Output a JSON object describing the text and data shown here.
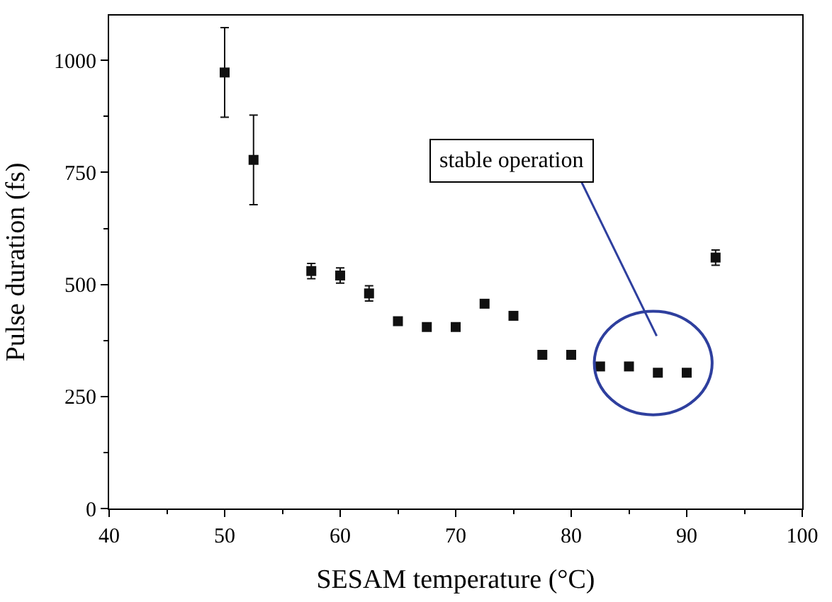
{
  "chart_data": {
    "type": "scatter",
    "xlabel": "SESAM temperature (°C)",
    "ylabel": "Pulse duration (fs)",
    "x": [
      50,
      52.5,
      57.5,
      60,
      62.5,
      65,
      67.5,
      70,
      72.5,
      75,
      77.5,
      80,
      82.5,
      85,
      87.5,
      90,
      92.5
    ],
    "series": [
      {
        "color": "#111111",
        "values": [
          973,
          778,
          530,
          520,
          480,
          418,
          405,
          405,
          457,
          430,
          343,
          343,
          317,
          317,
          303,
          303,
          560
        ],
        "errors": [
          100,
          100,
          17,
          17,
          17,
          null,
          null,
          null,
          null,
          null,
          null,
          null,
          null,
          null,
          null,
          null,
          17
        ]
      }
    ],
    "xlim": [
      40,
      100
    ],
    "xticks": [
      40,
      50,
      60,
      70,
      80,
      90,
      100
    ],
    "ylim": [
      0,
      1100
    ],
    "yticks": [
      0,
      250,
      500,
      750,
      1000
    ],
    "marker": "square",
    "annotations": [
      "stable operation"
    ]
  }
}
